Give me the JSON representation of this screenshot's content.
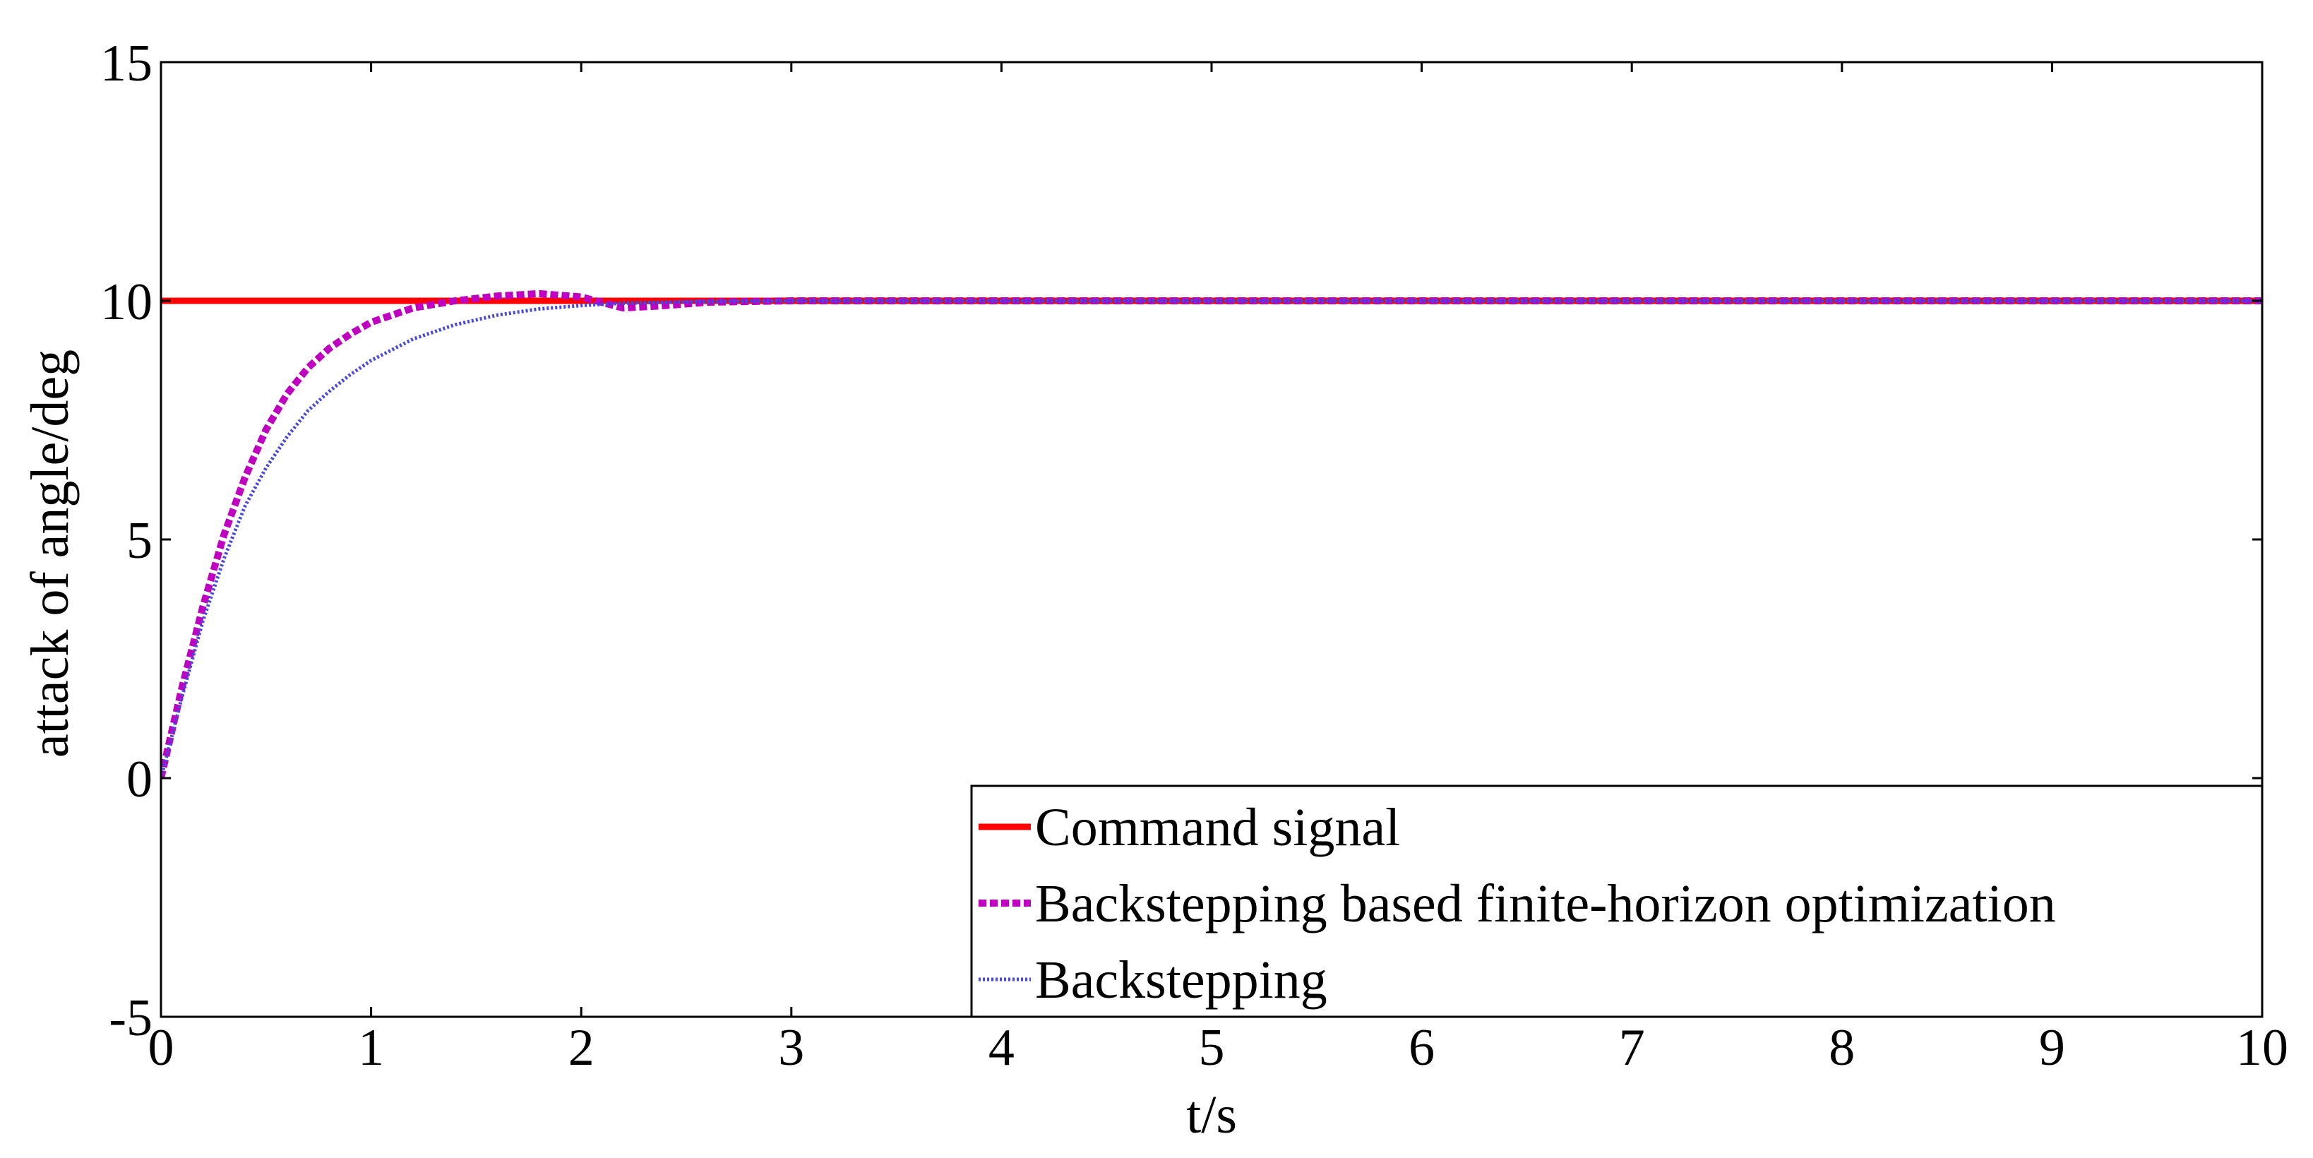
{
  "chart_data": {
    "type": "line",
    "xlabel": "t/s",
    "ylabel": "attack of angle/deg",
    "xlim": [
      0,
      10
    ],
    "ylim": [
      -5,
      15
    ],
    "xticks": [
      0,
      1,
      2,
      3,
      4,
      5,
      6,
      7,
      8,
      9,
      10
    ],
    "yticks": [
      -5,
      0,
      5,
      10,
      15
    ],
    "xtick_labels": [
      "0",
      "1",
      "2",
      "3",
      "4",
      "5",
      "6",
      "7",
      "8",
      "9",
      "10"
    ],
    "ytick_labels": [
      "-5",
      "0",
      "5",
      "10",
      "15"
    ],
    "grid": false,
    "legend_position": "bottom-right",
    "series": [
      {
        "name": "Command signal",
        "color": "#ff0000",
        "style": "solid",
        "x": [
          0,
          10
        ],
        "y": [
          10,
          10
        ]
      },
      {
        "name": "Backstepping based finite-horizon optimization",
        "color": "#c000c0",
        "style": "dashed",
        "x": [
          0,
          0.1,
          0.2,
          0.3,
          0.4,
          0.5,
          0.6,
          0.7,
          0.8,
          0.9,
          1.0,
          1.2,
          1.4,
          1.6,
          1.8,
          2.0,
          2.2,
          2.4,
          2.6,
          3.0,
          3.5,
          4.0,
          5.0,
          6.0,
          7.0,
          8.0,
          9.0,
          10.0
        ],
        "y": [
          0,
          1.9,
          3.6,
          5.1,
          6.3,
          7.3,
          8.05,
          8.6,
          9.0,
          9.3,
          9.55,
          9.85,
          10.0,
          10.1,
          10.15,
          10.08,
          9.85,
          9.9,
          9.97,
          10.0,
          10.0,
          10.0,
          10.0,
          10.0,
          10.0,
          10.0,
          10.0,
          10.0
        ]
      },
      {
        "name": "Backstepping",
        "color": "#4848e0",
        "style": "dotted",
        "x": [
          0,
          0.1,
          0.2,
          0.3,
          0.4,
          0.5,
          0.6,
          0.7,
          0.8,
          0.9,
          1.0,
          1.2,
          1.4,
          1.6,
          1.8,
          2.0,
          2.2,
          2.5,
          3.0,
          3.5,
          4.0,
          5.0,
          6.0,
          7.0,
          8.0,
          9.0,
          10.0
        ],
        "y": [
          0,
          1.7,
          3.3,
          4.6,
          5.7,
          6.5,
          7.15,
          7.7,
          8.1,
          8.45,
          8.75,
          9.2,
          9.5,
          9.7,
          9.83,
          9.9,
          9.95,
          9.98,
          10.0,
          10.0,
          10.0,
          10.0,
          10.0,
          10.0,
          10.0,
          10.0,
          10.0
        ]
      }
    ]
  }
}
